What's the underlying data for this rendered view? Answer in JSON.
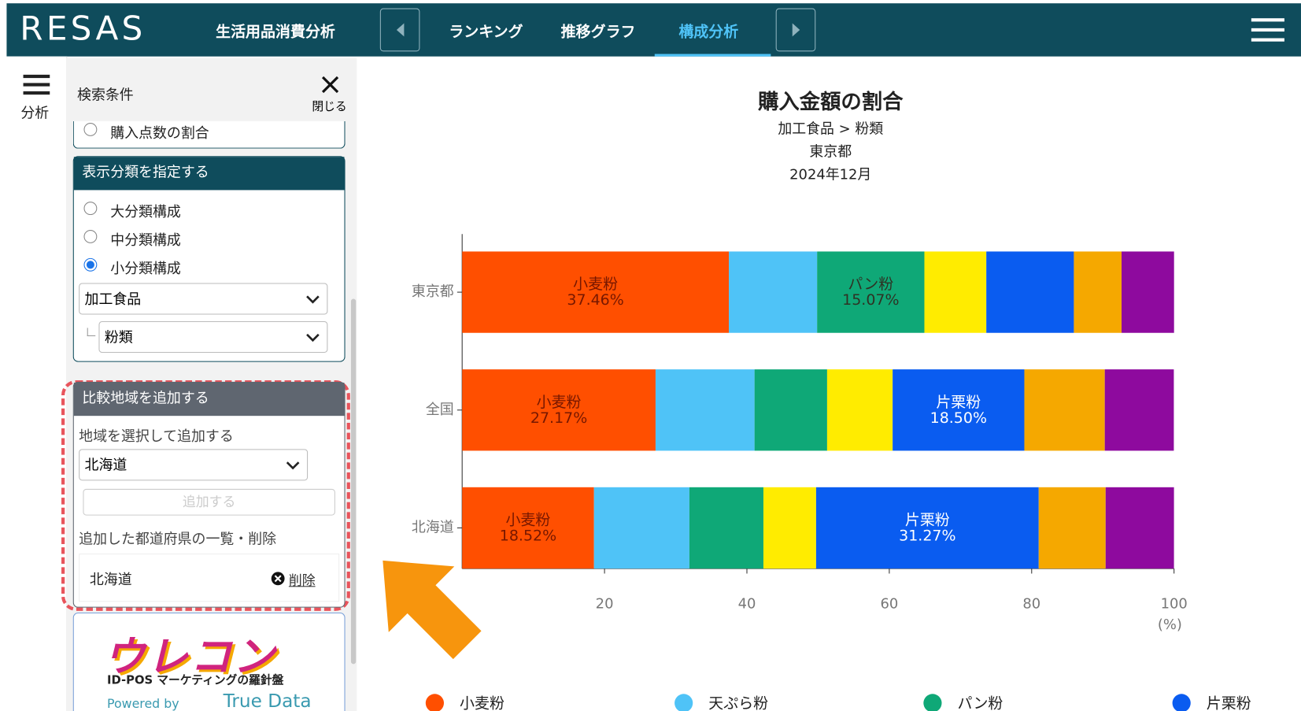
{
  "header": {
    "logo": "RESAS",
    "menu": "生活用品消費分析",
    "tabs": [
      "ランキング",
      "推移グラフ",
      "構成分析"
    ],
    "active_tab": 2
  },
  "rail": {
    "label": "分析"
  },
  "sidebar": {
    "title": "検索条件",
    "close": "閉じる",
    "option": "購入点数の割合",
    "display": {
      "title": "表示分類を指定する",
      "options": [
        "大分類構成",
        "中分類構成",
        "小分類構成"
      ],
      "checked": 2,
      "category": "加工食品",
      "subcategory": "粉類"
    },
    "compare": {
      "title": "比較地域を追加する",
      "prompt": "地域を選択して追加する",
      "region": "北海道",
      "add": "追加する",
      "list_title": "追加した都道府県の一覧・削除",
      "added": "北海道",
      "remove": "削除"
    },
    "ad": {
      "logo": "ウレコン",
      "tagline": "ID-POS マーケティングの羅針盤",
      "powered": "Powered by",
      "brand": "True Data"
    }
  },
  "chart_data": {
    "type": "stacked-barh",
    "title": "購入金額の割合",
    "subtitle": [
      "加工食品 > 粉類",
      "東京都",
      "2024年12月"
    ],
    "categories": [
      "東京都",
      "全国",
      "北海道"
    ],
    "series": [
      {
        "name": "小麦粉",
        "color": "#ff4f00",
        "values": [
          37.46,
          27.17,
          18.52
        ],
        "value_labels": [
          "37.46%",
          "27.17%",
          "18.52%"
        ]
      },
      {
        "name": "天ぷら粉",
        "color": "#4fc3f7",
        "values": [
          12.4,
          13.9,
          13.4
        ]
      },
      {
        "name": "パン粉",
        "color": "#0fa877",
        "values": [
          15.07,
          10.2,
          10.4
        ],
        "value_labels": [
          "15.07%",
          null,
          null
        ]
      },
      {
        "color": "#ffec00",
        "values": [
          8.7,
          9.2,
          7.4
        ]
      },
      {
        "name": "片栗粉",
        "color": "#0a5cf0",
        "values": [
          12.3,
          18.5,
          31.27
        ],
        "value_labels": [
          null,
          "18.50%",
          "31.27%"
        ]
      },
      {
        "color": "#f5a800",
        "values": [
          6.7,
          11.3,
          9.4
        ]
      },
      {
        "color": "#8e0a9e",
        "values": [
          7.37,
          9.7,
          9.6
        ]
      }
    ],
    "xlim": [
      0,
      100
    ],
    "xticks": [
      20,
      40,
      60,
      80,
      100
    ],
    "xlabel": "(%)"
  }
}
